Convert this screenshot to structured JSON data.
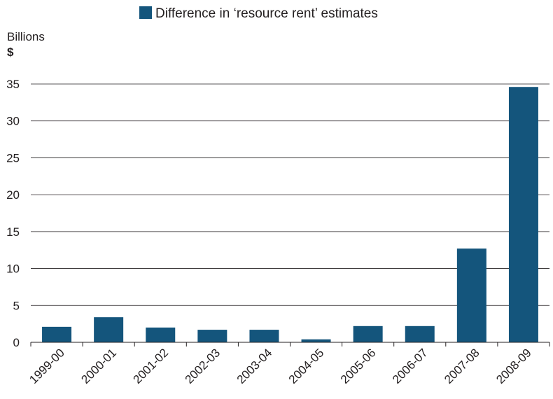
{
  "chart_data": {
    "type": "bar",
    "legend": "Difference in ‘resource rent’ estimates",
    "unit_label": "Billions",
    "unit_symbol": "$",
    "categories": [
      "1999-00",
      "2000-01",
      "2001-02",
      "2002-03",
      "2003-04",
      "2004-05",
      "2005-06",
      "2006-07",
      "2007-08",
      "2008-09"
    ],
    "values": [
      2.1,
      3.4,
      2.0,
      1.7,
      1.7,
      0.4,
      2.2,
      2.2,
      12.7,
      34.6
    ],
    "yticks": [
      "0",
      "5",
      "10",
      "15",
      "20",
      "25",
      "30",
      "35"
    ],
    "ylim": [
      0,
      35
    ],
    "grid": true,
    "legend_position": "top-center",
    "colors": {
      "bar": "#14557c",
      "grid": "#231f20",
      "text": "#231f20"
    }
  }
}
